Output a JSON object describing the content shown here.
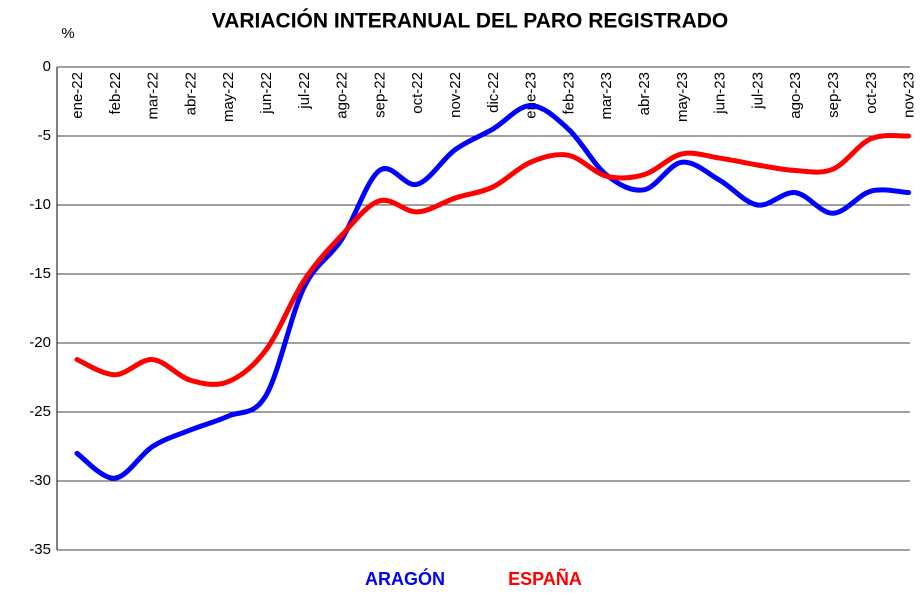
{
  "chart_data": {
    "type": "line",
    "title": "VARIACIÓN INTERANUAL DEL PARO REGISTRADO",
    "y_label": "%",
    "categories": [
      "ene-22",
      "feb-22",
      "mar-22",
      "abr-22",
      "may-22",
      "jun-22",
      "jul-22",
      "ago-22",
      "sep-22",
      "oct-22",
      "nov-22",
      "dic-22",
      "ene-23",
      "feb-23",
      "mar-23",
      "abr-23",
      "may-23",
      "jun-23",
      "jul-23",
      "ago-23",
      "sep-23",
      "oct-23",
      "nov-23"
    ],
    "series": [
      {
        "name": "ARAGÓN",
        "color": "#0000ff",
        "values": [
          -28,
          -29.8,
          -27.5,
          -26.3,
          -25.3,
          -23.8,
          -16,
          -12.5,
          -7.5,
          -8.5,
          -6,
          -4.5,
          -2.8,
          -4.5,
          -7.8,
          -8.9,
          -6.9,
          -8.2,
          -10,
          -9.1,
          -10.6,
          -9,
          -9.1
        ]
      },
      {
        "name": "ESPAÑA",
        "color": "#ff0000",
        "values": [
          -21.2,
          -22.3,
          -21.2,
          -22.7,
          -22.8,
          -20.5,
          -15.5,
          -12.2,
          -9.7,
          -10.5,
          -9.5,
          -8.7,
          -6.9,
          -6.4,
          -7.9,
          -7.8,
          -6.3,
          -6.6,
          -7.1,
          -7.5,
          -7.4,
          -5.2,
          -5.0
        ]
      }
    ],
    "ylim": [
      -35,
      0
    ],
    "yticks": [
      0,
      -5,
      -10,
      -15,
      -20,
      -25,
      -30,
      -35
    ],
    "grid": true
  }
}
